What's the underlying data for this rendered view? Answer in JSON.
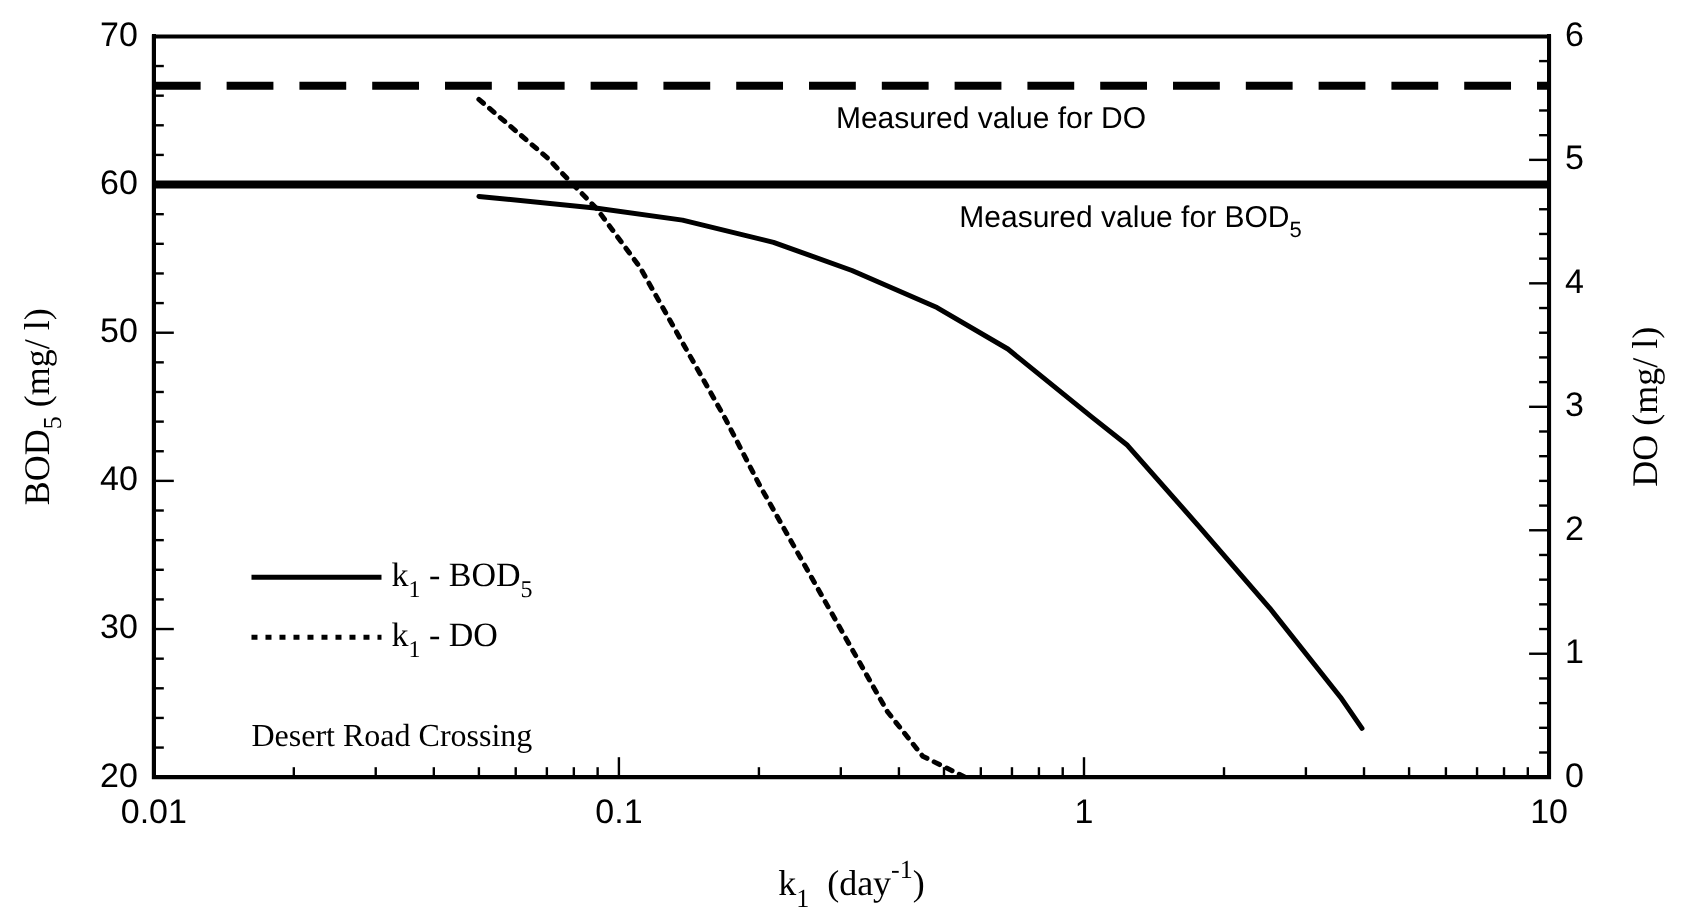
{
  "chart_data": {
    "type": "line",
    "xlabel": "k$_{1}$  (day$^{-1}$)",
    "ylabel": "BOD$_{5}$ (mg/ l)",
    "y2label": "DO (mg/ l)",
    "log": "x",
    "grid": false,
    "legend": "left",
    "marker": "none",
    "xlim": [
      0.01,
      10
    ],
    "xticks": [
      0.01,
      {
        "value": 0.02,
        "label": null
      },
      {
        "value": 0.03,
        "label": null
      },
      {
        "value": 0.04,
        "label": null
      },
      {
        "value": 0.05,
        "label": null
      },
      {
        "value": 0.06,
        "label": null
      },
      {
        "value": 0.07,
        "label": null
      },
      {
        "value": 0.08,
        "label": null
      },
      {
        "value": 0.09,
        "label": null
      },
      0.1,
      {
        "value": 0.2,
        "label": null
      },
      {
        "value": 0.3,
        "label": null
      },
      {
        "value": 0.4,
        "label": null
      },
      {
        "value": 0.5,
        "label": null
      },
      {
        "value": 0.6,
        "label": null
      },
      {
        "value": 0.7,
        "label": null
      },
      {
        "value": 0.8,
        "label": null
      },
      {
        "value": 0.9,
        "label": null
      },
      1,
      {
        "value": 2,
        "label": null
      },
      {
        "value": 3,
        "label": null
      },
      {
        "value": 4,
        "label": null
      },
      {
        "value": 5,
        "label": null
      },
      {
        "value": 6,
        "label": null
      },
      {
        "value": 7,
        "label": null
      },
      {
        "value": 8,
        "label": null
      },
      {
        "value": 9,
        "label": null
      },
      10
    ],
    "ylim": [
      20,
      70
    ],
    "yticks": [
      20,
      {
        "value": 22,
        "label": null
      },
      {
        "value": 24,
        "label": null
      },
      {
        "value": 26,
        "label": null
      },
      {
        "value": 28,
        "label": null
      },
      30,
      {
        "value": 32,
        "label": null
      },
      {
        "value": 34,
        "label": null
      },
      {
        "value": 36,
        "label": null
      },
      {
        "value": 38,
        "label": null
      },
      40,
      {
        "value": 42,
        "label": null
      },
      {
        "value": 44,
        "label": null
      },
      {
        "value": 46,
        "label": null
      },
      {
        "value": 48,
        "label": null
      },
      50,
      {
        "value": 52,
        "label": null
      },
      {
        "value": 54,
        "label": null
      },
      {
        "value": 56,
        "label": null
      },
      {
        "value": 58,
        "label": null
      },
      60,
      {
        "value": 62,
        "label": null
      },
      {
        "value": 64,
        "label": null
      },
      {
        "value": 66,
        "label": null
      },
      {
        "value": 68,
        "label": null
      },
      70
    ],
    "y2lim": [
      0,
      6
    ],
    "y2ticks": [
      0,
      {
        "value": 0.2,
        "label": null
      },
      {
        "value": 0.4,
        "label": null
      },
      {
        "value": 0.6,
        "label": null
      },
      {
        "value": 0.8,
        "label": null
      },
      1,
      {
        "value": 1.2,
        "label": null
      },
      {
        "value": 1.4,
        "label": null
      },
      {
        "value": 1.6,
        "label": null
      },
      {
        "value": 1.8,
        "label": null
      },
      2,
      {
        "value": 2.2,
        "label": null
      },
      {
        "value": 2.4,
        "label": null
      },
      {
        "value": 2.6,
        "label": null
      },
      {
        "value": 2.8,
        "label": null
      },
      3,
      {
        "value": 3.2,
        "label": null
      },
      {
        "value": 3.4,
        "label": null
      },
      {
        "value": 3.6,
        "label": null
      },
      {
        "value": 3.8,
        "label": null
      },
      4,
      {
        "value": 4.2,
        "label": null
      },
      {
        "value": 4.4,
        "label": null
      },
      {
        "value": 4.6,
        "label": null
      },
      {
        "value": 4.8,
        "label": null
      },
      5,
      {
        "value": 5.2,
        "label": null
      },
      {
        "value": 5.4,
        "label": null
      },
      {
        "value": 5.6,
        "label": null
      },
      {
        "value": 5.8,
        "label": null
      },
      6
    ],
    "series": [
      {
        "name": "k$_{1}$ - BOD$_{5}$",
        "color": "#000000",
        "line_style": "solid",
        "x": [
          0.05,
          0.0898,
          0.137,
          0.215,
          0.317,
          0.483,
          0.686,
          1.04,
          1.24,
          1.77,
          2.51,
          3.56,
          3.96
        ],
        "values": [
          59.2,
          58.4,
          57.6,
          56.1,
          54.2,
          51.7,
          48.9,
          44.3,
          42.4,
          36.9,
          31.4,
          25.4,
          23.3
        ]
      },
      {
        "name": "k$_{1}$ - DO",
        "color": "#000000",
        "line_style": "dotted",
        "axis": "y2",
        "x": [
          0.05,
          0.07,
          0.0898,
          0.111,
          0.137,
          0.169,
          0.201,
          0.248,
          0.306,
          0.378,
          0.45,
          0.555
        ],
        "values": [
          5.49,
          5.02,
          4.6,
          4.13,
          3.52,
          2.91,
          2.36,
          1.75,
          1.14,
          0.53,
          0.17,
          0.0
        ]
      }
    ],
    "ref_lines": [
      {
        "axis": "y2",
        "value": 5.6,
        "label": "Measured value for DO",
        "color": "#000000",
        "line_style": "dashed"
      },
      {
        "axis": "y",
        "value": 60,
        "label": "Measured value for BOD$_{5}$",
        "color": "#000000",
        "line_style": "solid"
      }
    ],
    "annotations": [
      "Desert Road Crossing"
    ]
  }
}
